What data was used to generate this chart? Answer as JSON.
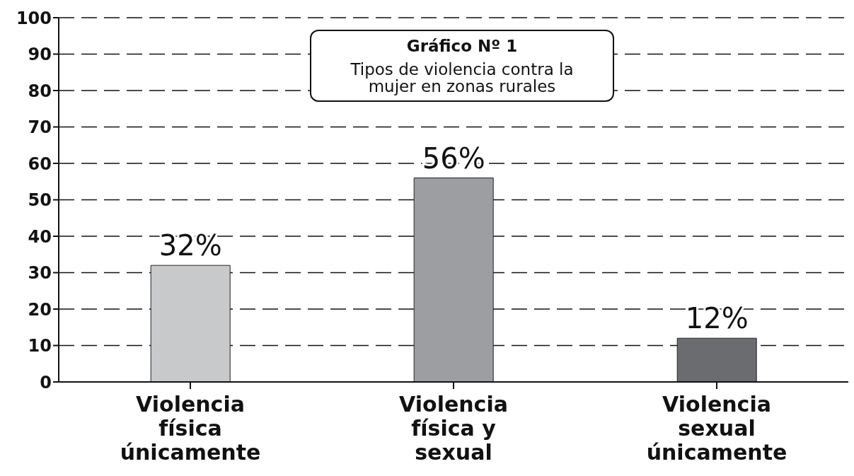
{
  "chart_data": {
    "type": "bar",
    "title": "Gráfico Nº 1",
    "subtitle": "Tipos de violencia contra la mujer en zonas rurales",
    "categories": [
      "Violencia física únicamente",
      "Violencia física y sexual",
      "Violencia sexual únicamente"
    ],
    "values": [
      32,
      56,
      12
    ],
    "colors": [
      "#c8c9cb",
      "#9d9ea2",
      "#6b6c70"
    ],
    "value_labels": [
      "32%",
      "56%",
      "12%"
    ],
    "ylim": [
      0,
      100
    ],
    "yticks": [
      0,
      10,
      20,
      30,
      40,
      50,
      60,
      70,
      80,
      90,
      100
    ],
    "grid": "y"
  }
}
